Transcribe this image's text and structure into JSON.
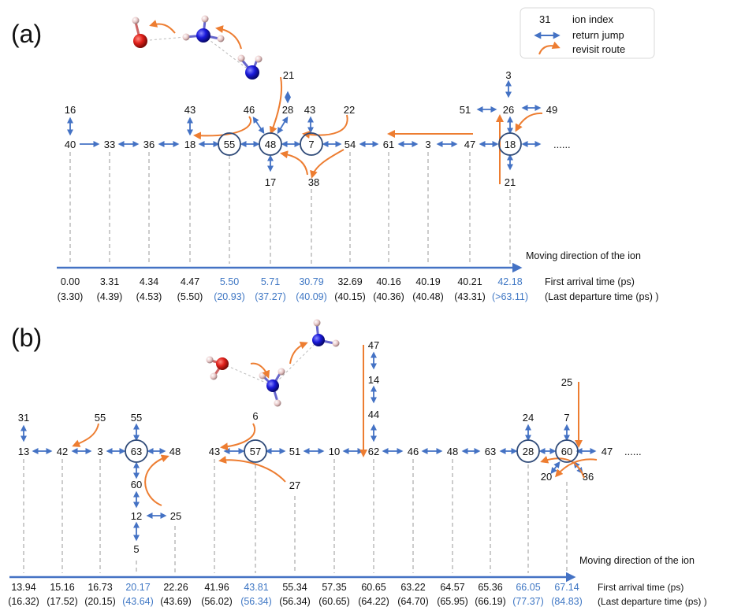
{
  "colors": {
    "blue": "#4472c4",
    "blue_text": "#3f77c4",
    "orange": "#ed7d31",
    "dash": "#9a9a9a",
    "oxygen": "#e0201a",
    "nitrogen": "#1a1adb",
    "hydrogen": "#e8c8c8"
  },
  "legend": {
    "ion_index_sample": "31",
    "ion_index": "ion index",
    "return_jump": "return jump",
    "revisit_route": "revisit route"
  },
  "panel_a": {
    "label": "(a)",
    "sites": [
      "40",
      "33",
      "36",
      "18",
      "55",
      "48",
      "7",
      "54",
      "61",
      "3",
      "47",
      "18",
      "......"
    ],
    "branches": [
      "16",
      "43",
      "46",
      "28",
      "21",
      "43",
      "22",
      "17",
      "38",
      "51",
      "3",
      "26",
      "49",
      "21"
    ],
    "first_arrival": [
      "0.00",
      "3.31",
      "4.34",
      "4.47",
      "5.50",
      "5.71",
      "30.79",
      "32.69",
      "40.16",
      "40.19",
      "40.21",
      "42.18"
    ],
    "last_departure": [
      "(3.30)",
      "(4.39)",
      "(4.53)",
      "(5.50)",
      "(20.93)",
      "(37.27)",
      "(40.09)",
      "(40.15)",
      "(40.36)",
      "(40.48)",
      "(43.31)",
      "(>63.11)"
    ],
    "axis_label": "Moving direction of the ion",
    "first_arrival_label": "First arrival time (ps)",
    "last_departure_label": "(Last departure time (ps) )"
  },
  "panel_b": {
    "label": "(b)",
    "sites": [
      "13",
      "42",
      "3",
      "63",
      "48",
      "43",
      "57",
      "51",
      "10",
      "62",
      "46",
      "48",
      "63",
      "28",
      "60",
      "47",
      "......"
    ],
    "branches": [
      "31",
      "55",
      "55",
      "60",
      "12",
      "25",
      "5",
      "6",
      "27",
      "47",
      "14",
      "44",
      "24",
      "25",
      "7",
      "20",
      "36"
    ],
    "first_arrival": [
      "13.94",
      "15.16",
      "16.73",
      "20.17",
      "22.26",
      "41.96",
      "43.81",
      "55.34",
      "57.35",
      "60.65",
      "63.22",
      "64.57",
      "65.36",
      "66.05",
      "67.14"
    ],
    "last_departure": [
      "(16.32)",
      "(17.52)",
      "(20.15)",
      "(43.64)",
      "(43.69)",
      "(56.02)",
      "(56.34)",
      "(56.34)",
      "(60.65)",
      "(64.22)",
      "(64.70)",
      "(65.95)",
      "(66.19)",
      "(77.37)",
      "(84.83)"
    ],
    "axis_label": "Moving direction of the ion",
    "first_arrival_label": "First arrival time (ps)",
    "last_departure_label": "(Last departure time (ps) )"
  }
}
